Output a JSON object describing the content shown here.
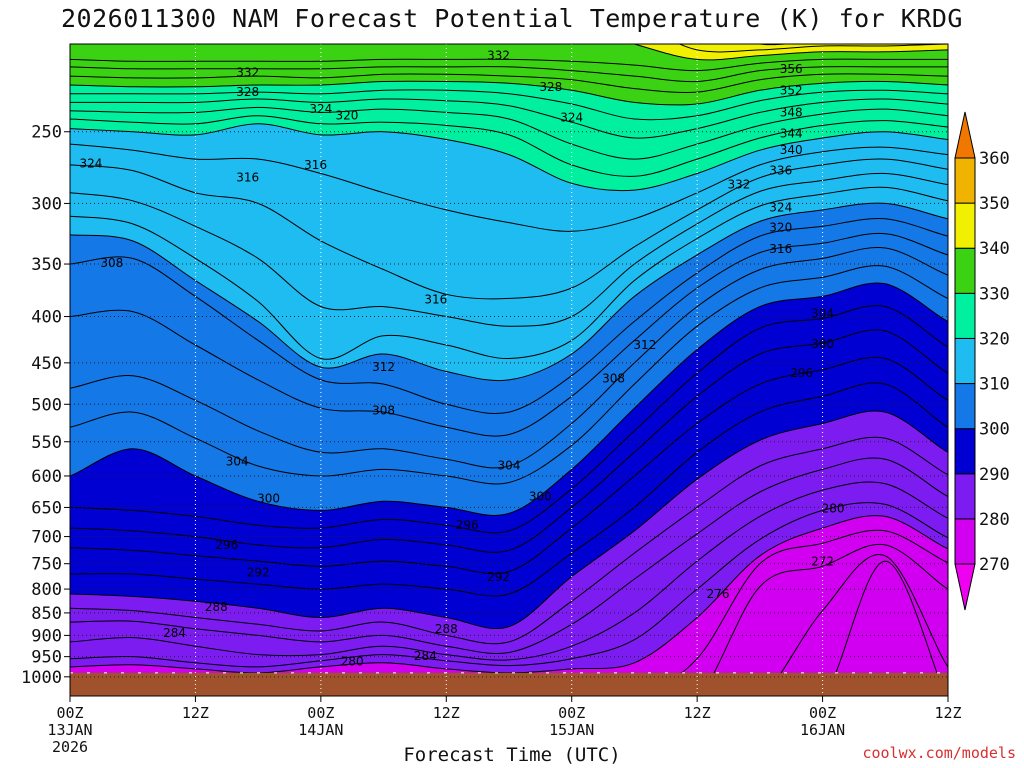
{
  "chart_data": {
    "type": "heatmap",
    "title": "2026011300 NAM Forecast Potential Temperature (K) for KRDG",
    "xlabel": "Forecast Time (UTC)",
    "ylabel": "",
    "credit": "coolwx.com/models",
    "y_axis": {
      "ticks": [
        250,
        300,
        350,
        400,
        450,
        500,
        550,
        600,
        650,
        700,
        750,
        800,
        850,
        900,
        950,
        1000
      ],
      "range": [
        200,
        1050
      ],
      "scale": "log",
      "inverted": true
    },
    "x_axis": {
      "range_hours": [
        0,
        84
      ],
      "ticks": [
        {
          "hour": 0,
          "line1": "00Z",
          "line2": "13JAN",
          "line3": "2026"
        },
        {
          "hour": 12,
          "line1": "12Z",
          "line2": "",
          "line3": ""
        },
        {
          "hour": 24,
          "line1": "00Z",
          "line2": "14JAN",
          "line3": ""
        },
        {
          "hour": 36,
          "line1": "12Z",
          "line2": "",
          "line3": ""
        },
        {
          "hour": 48,
          "line1": "00Z",
          "line2": "15JAN",
          "line3": ""
        },
        {
          "hour": 60,
          "line1": "12Z",
          "line2": "",
          "line3": ""
        },
        {
          "hour": 72,
          "line1": "00Z",
          "line2": "16JAN",
          "line3": ""
        },
        {
          "hour": 84,
          "line1": "12Z",
          "line2": "",
          "line3": ""
        }
      ]
    },
    "grid": true,
    "colorbar": {
      "ticks": [
        270,
        280,
        290,
        300,
        310,
        320,
        330,
        340,
        350,
        360
      ],
      "bands": [
        {
          "from": 260,
          "to": 270,
          "color": "#f000f0"
        },
        {
          "from": 270,
          "to": 280,
          "color": "#d200f0"
        },
        {
          "from": 280,
          "to": 290,
          "color": "#7c1cf0"
        },
        {
          "from": 290,
          "to": 300,
          "color": "#0000d2"
        },
        {
          "from": 300,
          "to": 310,
          "color": "#1478e6"
        },
        {
          "from": 310,
          "to": 320,
          "color": "#1ebcf0"
        },
        {
          "from": 320,
          "to": 330,
          "color": "#00f0a0"
        },
        {
          "from": 330,
          "to": 340,
          "color": "#3cd214"
        },
        {
          "from": 340,
          "to": 350,
          "color": "#f0f000"
        },
        {
          "from": 350,
          "to": 360,
          "color": "#f0b400"
        },
        {
          "from": 360,
          "to": 370,
          "color": "#f07800"
        }
      ]
    },
    "sample_hours": [
      0,
      6,
      12,
      18,
      24,
      30,
      36,
      42,
      48,
      54,
      60,
      66,
      72,
      78,
      84
    ],
    "isentropes": [
      {
        "theta": 270,
        "p": [
          null,
          null,
          null,
          null,
          null,
          null,
          null,
          null,
          null,
          null,
          null,
          null,
          null,
          1060,
          1060
        ]
      },
      {
        "theta": 272,
        "p": [
          null,
          null,
          null,
          null,
          null,
          null,
          null,
          null,
          null,
          null,
          null,
          null,
          1060,
          745,
          1060
        ]
      },
      {
        "theta": 274,
        "p": [
          null,
          null,
          null,
          null,
          null,
          null,
          null,
          null,
          null,
          null,
          null,
          1060,
          845,
          735,
          975
        ]
      },
      {
        "theta": 276,
        "p": [
          null,
          null,
          null,
          null,
          null,
          null,
          null,
          null,
          null,
          null,
          1060,
          795,
          755,
          715,
          800
        ]
      },
      {
        "theta": 278,
        "p": [
          null,
          null,
          null,
          null,
          null,
          null,
          null,
          null,
          null,
          1060,
          955,
          750,
          712,
          690,
          748
        ]
      },
      {
        "theta": 280,
        "p": [
          975,
          970,
          980,
          990,
          975,
          965,
          980,
          990,
          980,
          965,
          860,
          735,
          685,
          665,
          722
        ]
      },
      {
        "theta": 282,
        "p": [
          955,
          950,
          965,
          975,
          960,
          945,
          960,
          972,
          955,
          910,
          800,
          705,
          655,
          645,
          702
        ]
      },
      {
        "theta": 284,
        "p": [
          915,
          905,
          925,
          945,
          945,
          925,
          945,
          958,
          925,
          850,
          745,
          665,
          622,
          612,
          668
        ]
      },
      {
        "theta": 286,
        "p": [
          870,
          868,
          885,
          900,
          915,
          900,
          925,
          940,
          875,
          780,
          695,
          625,
          590,
          575,
          632
        ]
      },
      {
        "theta": 288,
        "p": [
          840,
          845,
          860,
          875,
          890,
          870,
          900,
          915,
          825,
          730,
          650,
          585,
          560,
          545,
          598
        ]
      },
      {
        "theta": 290,
        "p": [
          810,
          815,
          825,
          840,
          860,
          840,
          860,
          880,
          775,
          690,
          605,
          548,
          525,
          510,
          565
        ]
      },
      {
        "theta": 292,
        "p": [
          770,
          770,
          780,
          790,
          800,
          790,
          800,
          810,
          730,
          650,
          565,
          510,
          490,
          475,
          530
        ]
      },
      {
        "theta": 294,
        "p": [
          720,
          725,
          735,
          745,
          755,
          745,
          755,
          765,
          685,
          600,
          525,
          475,
          458,
          445,
          495
        ]
      },
      {
        "theta": 296,
        "p": [
          685,
          690,
          700,
          715,
          720,
          705,
          715,
          725,
          650,
          565,
          490,
          440,
          428,
          415,
          462
        ]
      },
      {
        "theta": 298,
        "p": [
          650,
          655,
          665,
          680,
          685,
          670,
          680,
          690,
          620,
          535,
          462,
          412,
          402,
          390,
          432
        ]
      },
      {
        "theta": 300,
        "p": [
          600,
          560,
          600,
          640,
          655,
          640,
          650,
          660,
          590,
          505,
          435,
          390,
          380,
          368,
          405
        ]
      },
      {
        "theta": 302,
        "p": [
          530,
          510,
          545,
          585,
          600,
          590,
          600,
          610,
          555,
          475,
          410,
          372,
          362,
          352,
          382
        ]
      },
      {
        "theta": 304,
        "p": [
          480,
          465,
          495,
          535,
          565,
          560,
          575,
          585,
          525,
          450,
          390,
          355,
          345,
          336,
          360
        ]
      },
      {
        "theta": 306,
        "p": [
          400,
          395,
          430,
          470,
          505,
          510,
          530,
          540,
          490,
          425,
          372,
          340,
          332,
          324,
          342
        ]
      },
      {
        "theta": 308,
        "p": [
          350,
          345,
          380,
          425,
          470,
          475,
          500,
          510,
          465,
          405,
          358,
          326,
          318,
          312,
          326
        ]
      },
      {
        "theta": 310,
        "p": [
          325,
          330,
          365,
          405,
          455,
          440,
          460,
          470,
          440,
          380,
          342,
          314,
          305,
          300,
          312
        ]
      },
      {
        "theta": 312,
        "p": [
          310,
          316,
          345,
          385,
          445,
          420,
          430,
          445,
          425,
          365,
          328,
          302,
          293,
          288,
          298
        ]
      },
      {
        "theta": 314,
        "p": [
          292,
          298,
          318,
          345,
          390,
          390,
          400,
          410,
          400,
          350,
          316,
          291,
          283,
          278,
          286
        ]
      },
      {
        "theta": 316,
        "p": [
          272,
          276,
          292,
          300,
          330,
          355,
          378,
          382,
          372,
          335,
          305,
          281,
          272,
          268,
          275
        ]
      },
      {
        "theta": 318,
        "p": [
          258,
          262,
          268,
          268,
          278,
          292,
          305,
          315,
          322,
          312,
          292,
          272,
          263,
          260,
          265
        ]
      },
      {
        "theta": 320,
        "p": [
          248,
          250,
          252,
          245,
          252,
          250,
          255,
          265,
          285,
          290,
          278,
          262,
          254,
          250,
          255
        ]
      },
      {
        "theta": 322,
        "p": [
          242,
          244,
          245,
          240,
          245,
          244,
          246,
          252,
          272,
          280,
          268,
          254,
          246,
          243,
          247
        ]
      },
      {
        "theta": 324,
        "p": [
          237,
          238,
          238,
          235,
          238,
          236,
          238,
          242,
          258,
          268,
          258,
          246,
          239,
          236,
          240
        ]
      },
      {
        "theta": 326,
        "p": [
          232,
          232,
          232,
          230,
          232,
          230,
          231,
          234,
          244,
          254,
          248,
          238,
          232,
          230,
          233
        ]
      },
      {
        "theta": 328,
        "p": [
          227,
          227,
          227,
          226,
          227,
          225,
          225,
          227,
          233,
          242,
          240,
          231,
          226,
          225,
          227
        ]
      },
      {
        "theta": 330,
        "p": [
          222,
          223,
          223,
          222,
          222,
          220,
          220,
          221,
          225,
          232,
          233,
          225,
          221,
          220,
          222
        ]
      },
      {
        "theta": 332,
        "p": [
          217,
          218,
          218,
          217,
          218,
          216,
          216,
          217,
          219,
          224,
          226,
          219,
          216,
          216,
          217
        ]
      },
      {
        "theta": 334,
        "p": [
          212,
          213,
          213,
          213,
          213,
          212,
          212,
          212,
          214,
          217,
          220,
          214,
          212,
          212,
          212
        ]
      },
      {
        "theta": 336,
        "p": [
          208,
          209,
          209,
          209,
          209,
          208,
          208,
          208,
          209,
          211,
          214,
          210,
          208,
          208,
          208
        ]
      },
      {
        "theta": 340,
        "p": [
          190,
          190,
          190,
          190,
          190,
          190,
          190,
          190,
          190,
          200,
          208,
          206,
          204,
          204,
          203
        ]
      },
      {
        "theta": 344,
        "p": [
          null,
          null,
          null,
          null,
          null,
          null,
          null,
          null,
          null,
          190,
          203,
          203,
          201,
          201,
          200
        ]
      },
      {
        "theta": 348,
        "p": [
          null,
          null,
          null,
          null,
          null,
          null,
          null,
          null,
          null,
          null,
          190,
          200,
          198,
          198,
          190
        ]
      },
      {
        "theta": 352,
        "p": [
          null,
          null,
          null,
          null,
          null,
          null,
          null,
          null,
          null,
          null,
          null,
          190,
          195,
          195,
          190
        ]
      },
      {
        "theta": 356,
        "p": [
          null,
          null,
          null,
          null,
          null,
          null,
          null,
          null,
          null,
          null,
          null,
          null,
          190,
          190,
          null
        ]
      }
    ],
    "contour_labels": [
      {
        "text": "332",
        "hour": 17.0,
        "p": 215
      },
      {
        "text": "328",
        "hour": 17.0,
        "p": 226
      },
      {
        "text": "324",
        "hour": 24.0,
        "p": 236
      },
      {
        "text": "320",
        "hour": 26.5,
        "p": 240
      },
      {
        "text": "324",
        "hour": 2.0,
        "p": 271
      },
      {
        "text": "316",
        "hour": 17.0,
        "p": 281
      },
      {
        "text": "316",
        "hour": 23.5,
        "p": 272
      },
      {
        "text": "332",
        "hour": 41.0,
        "p": 206
      },
      {
        "text": "328",
        "hour": 46.0,
        "p": 223
      },
      {
        "text": "324",
        "hour": 48.0,
        "p": 241
      },
      {
        "text": "356",
        "hour": 69.0,
        "p": 213
      },
      {
        "text": "352",
        "hour": 69.0,
        "p": 225
      },
      {
        "text": "348",
        "hour": 69.0,
        "p": 238
      },
      {
        "text": "344",
        "hour": 69.0,
        "p": 251
      },
      {
        "text": "340",
        "hour": 69.0,
        "p": 262
      },
      {
        "text": "336",
        "hour": 68.0,
        "p": 276
      },
      {
        "text": "332",
        "hour": 64.0,
        "p": 286
      },
      {
        "text": "324",
        "hour": 68.0,
        "p": 303
      },
      {
        "text": "320",
        "hour": 68.0,
        "p": 319
      },
      {
        "text": "316",
        "hour": 68.0,
        "p": 337
      },
      {
        "text": "308",
        "hour": 4.0,
        "p": 349
      },
      {
        "text": "316",
        "hour": 35.0,
        "p": 383
      },
      {
        "text": "312",
        "hour": 55.0,
        "p": 430
      },
      {
        "text": "312",
        "hour": 30.0,
        "p": 455
      },
      {
        "text": "308",
        "hour": 52.0,
        "p": 468
      },
      {
        "text": "308",
        "hour": 30.0,
        "p": 508
      },
      {
        "text": "304",
        "hour": 72.0,
        "p": 397
      },
      {
        "text": "300",
        "hour": 72.0,
        "p": 429
      },
      {
        "text": "296",
        "hour": 70.0,
        "p": 462
      },
      {
        "text": "304",
        "hour": 16.0,
        "p": 578
      },
      {
        "text": "304",
        "hour": 42.0,
        "p": 584
      },
      {
        "text": "300",
        "hour": 19.0,
        "p": 635
      },
      {
        "text": "300",
        "hour": 45.0,
        "p": 632
      },
      {
        "text": "296",
        "hour": 38.0,
        "p": 680
      },
      {
        "text": "296",
        "hour": 15.0,
        "p": 715
      },
      {
        "text": "292",
        "hour": 18.0,
        "p": 767
      },
      {
        "text": "292",
        "hour": 41.0,
        "p": 776
      },
      {
        "text": "280",
        "hour": 73.0,
        "p": 652
      },
      {
        "text": "272",
        "hour": 72.0,
        "p": 746
      },
      {
        "text": "276",
        "hour": 62.0,
        "p": 810
      },
      {
        "text": "288",
        "hour": 14.0,
        "p": 837
      },
      {
        "text": "288",
        "hour": 36.0,
        "p": 885
      },
      {
        "text": "284",
        "hour": 10.0,
        "p": 895
      },
      {
        "text": "284",
        "hour": 34.0,
        "p": 948
      },
      {
        "text": "280",
        "hour": 27.0,
        "p": 962
      }
    ],
    "terrain_p": 990
  }
}
